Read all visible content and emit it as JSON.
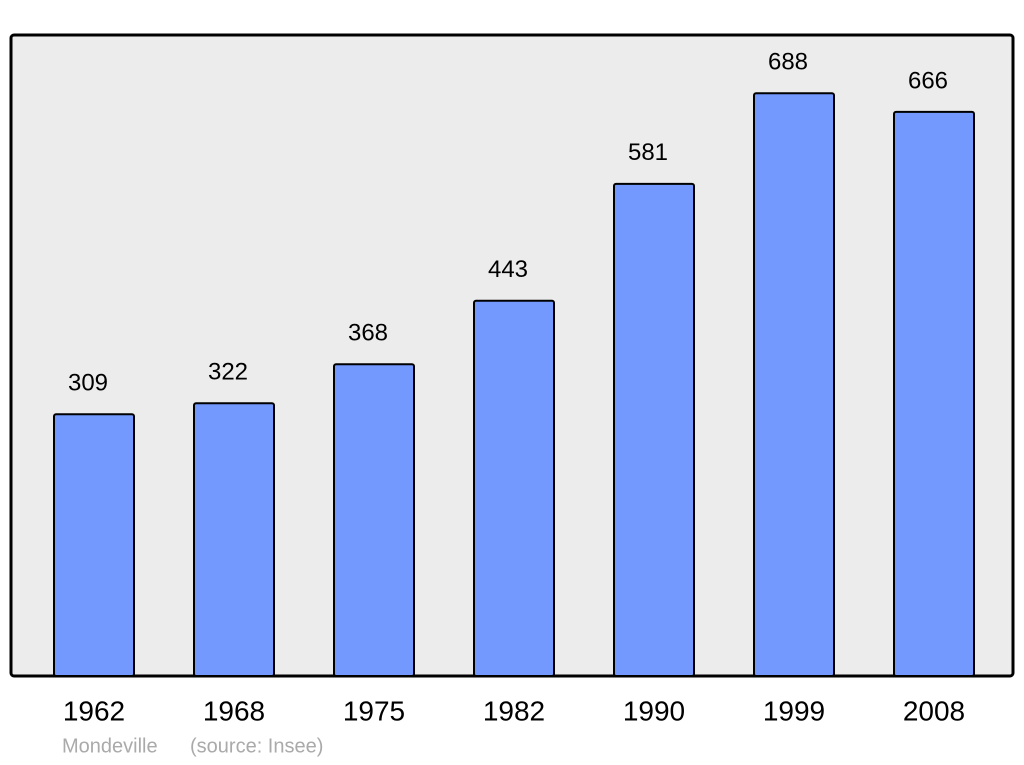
{
  "chart_data": {
    "type": "bar",
    "title": "Mondeville",
    "source": "(source: Insee)",
    "categories": [
      "1962",
      "1968",
      "1975",
      "1982",
      "1990",
      "1999",
      "2008"
    ],
    "values": [
      309,
      322,
      368,
      443,
      581,
      688,
      666
    ],
    "color": "#7399ff",
    "background": "#ececec"
  }
}
